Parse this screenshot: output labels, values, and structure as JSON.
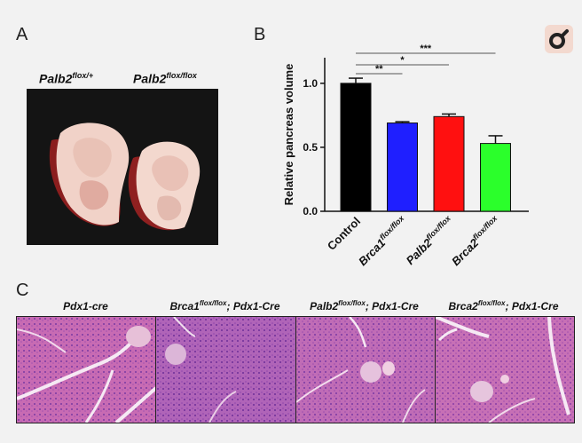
{
  "panels": {
    "a_label": "A",
    "b_label": "B",
    "c_label": "C"
  },
  "panel_a": {
    "left_genotype_base": "Palb2",
    "left_genotype_sup": "flox/+",
    "right_genotype_base": "Palb2",
    "right_genotype_sup": "flox/flox"
  },
  "panel_c": {
    "titles": [
      {
        "base": "Pdx1-cre",
        "sup": "",
        "rest": ""
      },
      {
        "base": "Brca1",
        "sup": "flox/flox",
        "rest": "; Pdx1-Cre"
      },
      {
        "base": "Palb2",
        "sup": "flox/flox",
        "rest": "; Pdx1-Cre"
      },
      {
        "base": "Brca2",
        "sup": "flox/flox",
        "rest": "; Pdx1-Cre"
      }
    ]
  },
  "zoom_icon": "magnifier-icon",
  "chart_data": {
    "type": "bar",
    "ylabel": "Relative pancreas volume",
    "ylim": [
      0,
      1.2
    ],
    "yticks": [
      "0.0",
      "0.5",
      "1.0"
    ],
    "categories": [
      {
        "base": "Control",
        "sup": ""
      },
      {
        "base": "Brca1",
        "sup": "flox/flox"
      },
      {
        "base": "Palb2",
        "sup": "flox/flox"
      },
      {
        "base": "Brca2",
        "sup": "flox/flox"
      }
    ],
    "values": [
      1.0,
      0.69,
      0.74,
      0.53
    ],
    "errors": [
      0.04,
      0.01,
      0.02,
      0.06
    ],
    "colors": [
      "#000000",
      "#1f1fff",
      "#ff1010",
      "#2bff2b"
    ],
    "significance": [
      {
        "from": 0,
        "to": 1,
        "label": "**"
      },
      {
        "from": 0,
        "to": 2,
        "label": "*"
      },
      {
        "from": 0,
        "to": 3,
        "label": "***"
      }
    ]
  }
}
